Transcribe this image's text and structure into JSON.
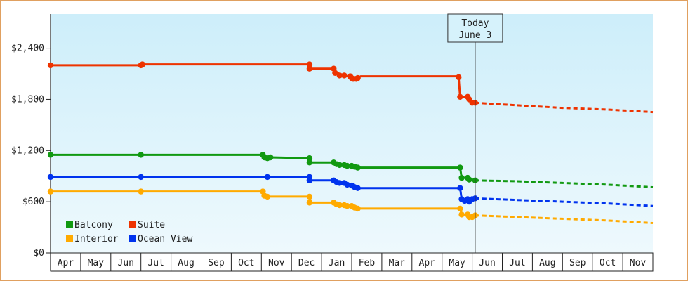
{
  "chart_data": {
    "type": "line",
    "title": "",
    "xlabel": "",
    "ylabel": "",
    "x_tick_labels": [
      "Apr",
      "May",
      "Jun",
      "Jul",
      "Aug",
      "Sep",
      "Oct",
      "Nov",
      "Dec",
      "Jan",
      "Feb",
      "Mar",
      "Apr",
      "May",
      "Jun",
      "Jul",
      "Aug",
      "Sep",
      "Oct",
      "Nov"
    ],
    "y_ticks": [
      0,
      600,
      1200,
      1800,
      2400
    ],
    "y_tick_labels": [
      "$0",
      "$600",
      "$1,200",
      "$1,800",
      "$2,400"
    ],
    "ylim": [
      0,
      2800
    ],
    "x_domain_months": [
      0,
      20
    ],
    "grid": false,
    "legend_position": "bottom-left",
    "today_marker": {
      "line1": "Today",
      "line2": "June 3",
      "month": 14.1
    },
    "series": [
      {
        "name": "Balcony",
        "color": "#119911",
        "actual": [
          [
            0,
            1150
          ],
          [
            3,
            1150
          ],
          [
            7.1,
            1150
          ],
          [
            7.15,
            1120
          ],
          [
            7.25,
            1110
          ],
          [
            7.3,
            1120
          ],
          [
            8.6,
            1110
          ],
          [
            8.65,
            1060
          ],
          [
            9.4,
            1060
          ],
          [
            9.5,
            1040
          ],
          [
            9.6,
            1030
          ],
          [
            9.75,
            1030
          ],
          [
            9.85,
            1020
          ],
          [
            10,
            1020
          ],
          [
            10.1,
            1010
          ],
          [
            10.2,
            1000
          ],
          [
            13.6,
            1000
          ],
          [
            13.65,
            880
          ],
          [
            13.85,
            880
          ],
          [
            13.9,
            860
          ],
          [
            14.0,
            860
          ],
          [
            14.1,
            850
          ]
        ],
        "markers": [
          [
            0,
            1150
          ],
          [
            3,
            1150
          ],
          [
            7.05,
            1150
          ],
          [
            7.1,
            1120
          ],
          [
            7.2,
            1110
          ],
          [
            7.3,
            1120
          ],
          [
            8.6,
            1110
          ],
          [
            8.6,
            1060
          ],
          [
            9.4,
            1060
          ],
          [
            9.5,
            1040
          ],
          [
            9.6,
            1030
          ],
          [
            9.75,
            1030
          ],
          [
            9.85,
            1020
          ],
          [
            10,
            1020
          ],
          [
            10.1,
            1010
          ],
          [
            10.2,
            1000
          ],
          [
            13.6,
            1000
          ],
          [
            13.65,
            880
          ],
          [
            13.85,
            880
          ],
          [
            13.9,
            860
          ],
          [
            14.1,
            850
          ]
        ],
        "forecast": [
          [
            14.1,
            850
          ],
          [
            15.5,
            840
          ],
          [
            17,
            820
          ],
          [
            18.5,
            800
          ],
          [
            20,
            770
          ]
        ]
      },
      {
        "name": "Suite",
        "color": "#ee3300",
        "actual": [
          [
            0,
            2200
          ],
          [
            3,
            2200
          ],
          [
            3.05,
            2210
          ],
          [
            8.6,
            2210
          ],
          [
            8.65,
            2160
          ],
          [
            9.4,
            2160
          ],
          [
            9.45,
            2110
          ],
          [
            9.55,
            2110
          ],
          [
            9.6,
            2080
          ],
          [
            9.75,
            2080
          ],
          [
            9.8,
            2070
          ],
          [
            9.95,
            2070
          ],
          [
            10,
            2050
          ],
          [
            10.05,
            2040
          ],
          [
            10.15,
            2040
          ],
          [
            10.2,
            2050
          ],
          [
            10.3,
            2070
          ],
          [
            13.5,
            2070
          ],
          [
            13.55,
            2060
          ],
          [
            13.6,
            1830
          ],
          [
            13.85,
            1830
          ],
          [
            13.9,
            1800
          ],
          [
            14.0,
            1760
          ],
          [
            14.1,
            1760
          ]
        ],
        "markers": [
          [
            0,
            2200
          ],
          [
            3,
            2200
          ],
          [
            3.05,
            2210
          ],
          [
            8.6,
            2210
          ],
          [
            8.6,
            2160
          ],
          [
            9.4,
            2160
          ],
          [
            9.45,
            2110
          ],
          [
            9.6,
            2080
          ],
          [
            9.75,
            2080
          ],
          [
            9.95,
            2070
          ],
          [
            10,
            2050
          ],
          [
            10.05,
            2040
          ],
          [
            10.15,
            2040
          ],
          [
            10.2,
            2050
          ],
          [
            13.55,
            2060
          ],
          [
            13.6,
            1830
          ],
          [
            13.85,
            1830
          ],
          [
            13.9,
            1800
          ],
          [
            14.0,
            1760
          ],
          [
            14.1,
            1760
          ]
        ],
        "forecast": [
          [
            14.1,
            1760
          ],
          [
            15.5,
            1730
          ],
          [
            17,
            1700
          ],
          [
            18.5,
            1680
          ],
          [
            20,
            1650
          ]
        ]
      },
      {
        "name": "Interior",
        "color": "#ffaa00",
        "actual": [
          [
            0,
            720
          ],
          [
            3,
            720
          ],
          [
            7.05,
            720
          ],
          [
            7.1,
            670
          ],
          [
            7.2,
            660
          ],
          [
            8.6,
            660
          ],
          [
            8.65,
            590
          ],
          [
            9.4,
            590
          ],
          [
            9.5,
            570
          ],
          [
            9.6,
            560
          ],
          [
            9.75,
            560
          ],
          [
            9.85,
            550
          ],
          [
            10,
            550
          ],
          [
            10.1,
            530
          ],
          [
            10.2,
            520
          ],
          [
            13.6,
            520
          ],
          [
            13.65,
            450
          ],
          [
            13.85,
            450
          ],
          [
            13.9,
            420
          ],
          [
            14.0,
            430
          ],
          [
            14.1,
            440
          ]
        ],
        "markers": [
          [
            0,
            720
          ],
          [
            3,
            720
          ],
          [
            7.05,
            720
          ],
          [
            7.1,
            670
          ],
          [
            7.2,
            660
          ],
          [
            8.6,
            660
          ],
          [
            8.6,
            590
          ],
          [
            9.4,
            590
          ],
          [
            9.5,
            570
          ],
          [
            9.6,
            560
          ],
          [
            9.75,
            560
          ],
          [
            9.85,
            550
          ],
          [
            10,
            550
          ],
          [
            10.1,
            530
          ],
          [
            10.2,
            520
          ],
          [
            13.6,
            520
          ],
          [
            13.65,
            450
          ],
          [
            13.85,
            450
          ],
          [
            13.9,
            420
          ],
          [
            14.0,
            420
          ],
          [
            14.1,
            440
          ]
        ],
        "forecast": [
          [
            14.1,
            440
          ],
          [
            15.5,
            420
          ],
          [
            17,
            400
          ],
          [
            18.5,
            380
          ],
          [
            20,
            350
          ]
        ]
      },
      {
        "name": "Ocean View",
        "color": "#0033ee",
        "actual": [
          [
            0,
            890
          ],
          [
            3,
            890
          ],
          [
            7.2,
            890
          ],
          [
            8.6,
            890
          ],
          [
            8.65,
            850
          ],
          [
            9.4,
            850
          ],
          [
            9.5,
            830
          ],
          [
            9.6,
            820
          ],
          [
            9.75,
            820
          ],
          [
            9.85,
            800
          ],
          [
            10,
            790
          ],
          [
            10.1,
            770
          ],
          [
            10.2,
            760
          ],
          [
            13.6,
            760
          ],
          [
            13.65,
            630
          ],
          [
            13.85,
            630
          ],
          [
            13.9,
            610
          ],
          [
            14.0,
            630
          ],
          [
            14.1,
            640
          ]
        ],
        "markers": [
          [
            0,
            890
          ],
          [
            3,
            890
          ],
          [
            7.2,
            890
          ],
          [
            8.6,
            890
          ],
          [
            8.6,
            850
          ],
          [
            9.4,
            850
          ],
          [
            9.5,
            830
          ],
          [
            9.6,
            820
          ],
          [
            9.75,
            820
          ],
          [
            9.85,
            800
          ],
          [
            10,
            790
          ],
          [
            10.1,
            770
          ],
          [
            10.2,
            760
          ],
          [
            13.6,
            760
          ],
          [
            13.65,
            630
          ],
          [
            13.75,
            610
          ],
          [
            13.85,
            630
          ],
          [
            13.9,
            600
          ],
          [
            14.0,
            630
          ],
          [
            14.1,
            640
          ]
        ],
        "forecast": [
          [
            14.1,
            640
          ],
          [
            15.5,
            620
          ],
          [
            17,
            600
          ],
          [
            18.5,
            580
          ],
          [
            20,
            550
          ]
        ]
      }
    ],
    "legend": [
      {
        "label": "Balcony",
        "color": "#119911"
      },
      {
        "label": "Suite",
        "color": "#ee3300"
      },
      {
        "label": "Interior",
        "color": "#ffaa00"
      },
      {
        "label": "Ocean View",
        "color": "#0033ee"
      }
    ]
  }
}
